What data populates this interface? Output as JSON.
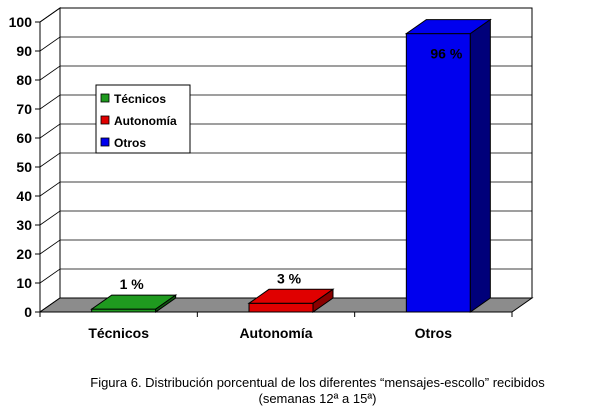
{
  "chart_data": {
    "type": "bar",
    "categories": [
      "Técnicos",
      "Autonomía",
      "Otros"
    ],
    "series": [
      {
        "name_by_category": true,
        "values": [
          1,
          3,
          96
        ]
      }
    ],
    "data_labels": [
      "1 %",
      "3 %",
      "96 %"
    ],
    "legend": {
      "placement": "left-inside",
      "entries": [
        "Técnicos",
        "Autonomía",
        "Otros"
      ]
    },
    "ylim": [
      0,
      100
    ],
    "yticks": [
      "0",
      "10",
      "20",
      "30",
      "40",
      "50",
      "60",
      "70",
      "80",
      "90",
      "100"
    ],
    "grid": true,
    "style": "3d",
    "colors": [
      "#1f9a1f",
      "#e00000",
      "#0000ee"
    ],
    "colors_side": [
      "#0d5a0d",
      "#8a0000",
      "#00007a"
    ]
  },
  "caption": {
    "line1": "Figura 6. Distribución porcentual de los diferentes “mensajes-escollo” recibidos",
    "line2": "(semanas 12ª a 15ª)"
  }
}
